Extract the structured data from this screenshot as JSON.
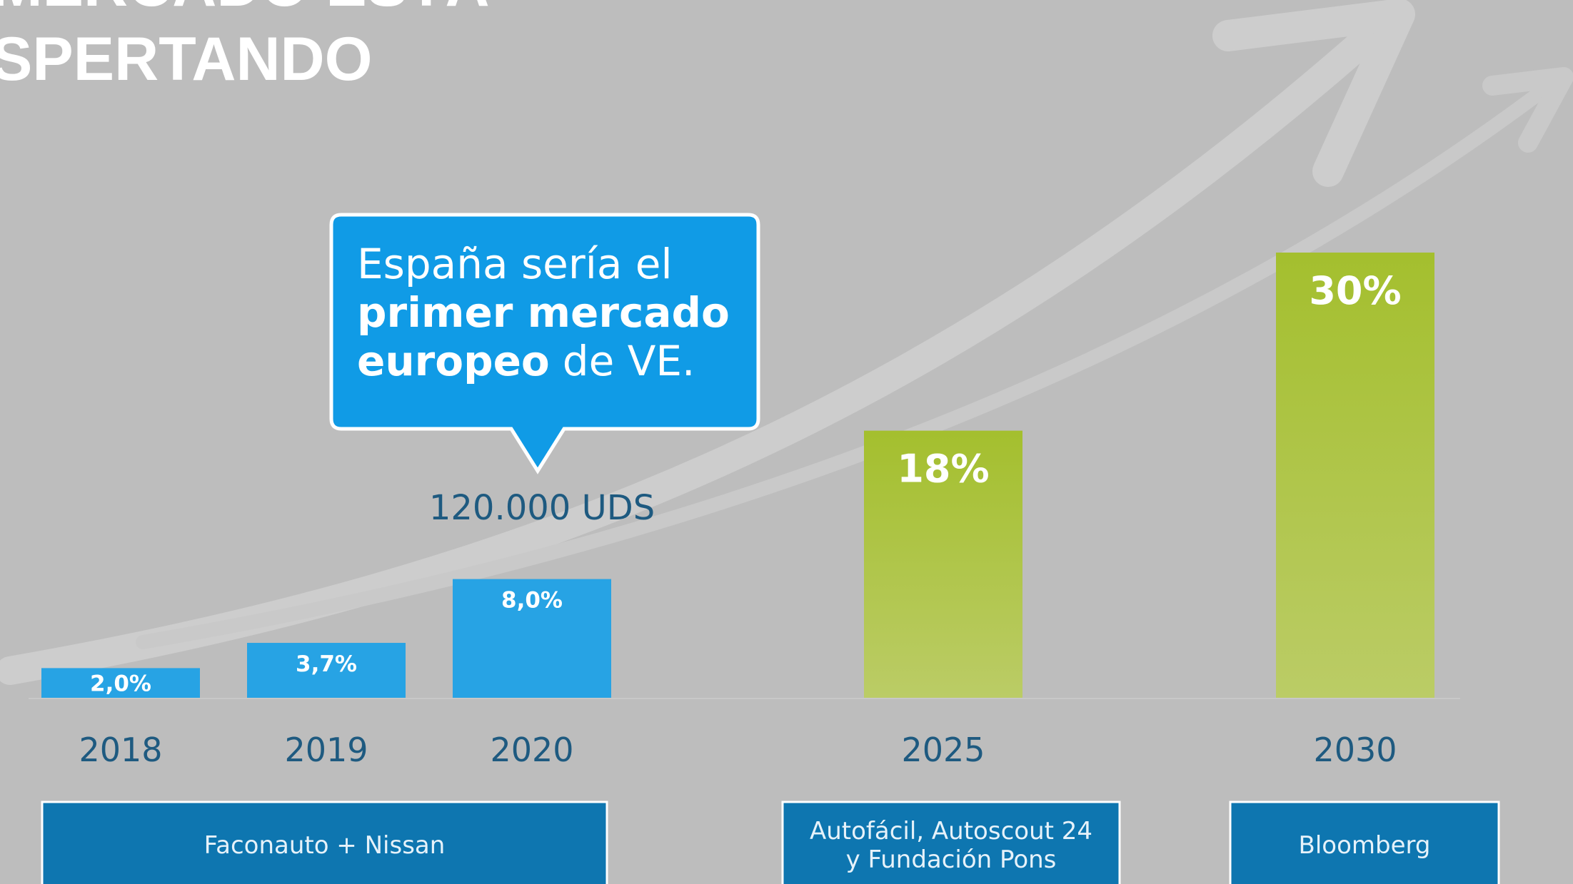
{
  "chart_data": {
    "type": "bar",
    "title_lines": [
      "MERCADO ESTÁ",
      "SPERTANDO"
    ],
    "categories": [
      "2018",
      "2019",
      "2020",
      "2025",
      "2030"
    ],
    "values": [
      2.0,
      3.7,
      8.0,
      18,
      30
    ],
    "value_labels": [
      "2,0%",
      "3,7%",
      "8,0%",
      "18%",
      "30%"
    ],
    "colors": [
      "#27a3e4",
      "#27a3e4",
      "#27a3e4",
      "#a9c43a",
      "#a9c43a"
    ],
    "callout": {
      "line1": "España sería el",
      "line2": "primer mercado",
      "line3_bold": "europeo",
      "line3": "de VE."
    },
    "annotation": "120.000 UDS",
    "sources": [
      [
        "Faconauto + Nissan"
      ],
      [
        "Autofácil, Autoscout 24",
        "y Fundación Pons"
      ],
      [
        "Bloomberg"
      ]
    ]
  }
}
